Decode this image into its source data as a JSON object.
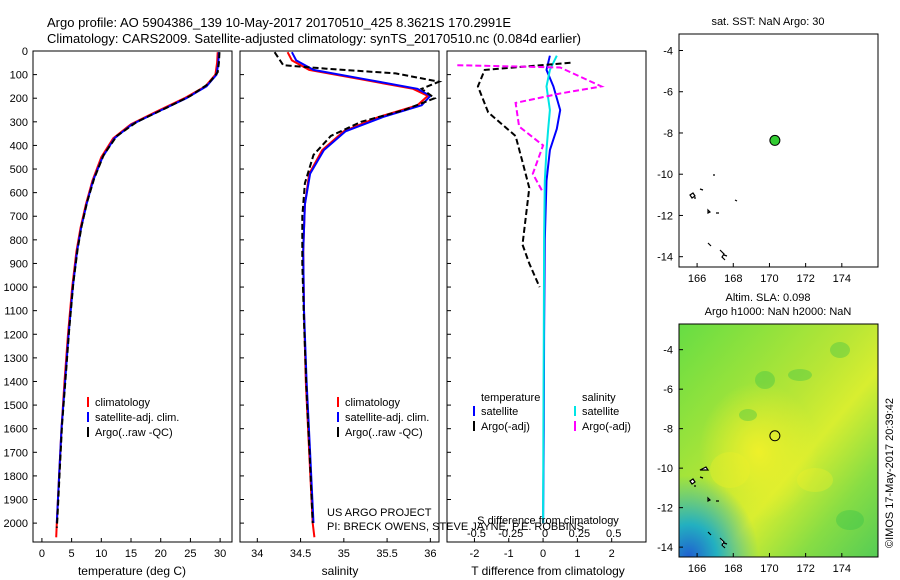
{
  "header": {
    "line1": "Argo profile: AO 5904386_139 10-May-2017 20170510_425 8.3621S 170.2991E",
    "line2": "Climatology: CARS2009. Satellite-adjusted climatology: synTS_20170510.nc (0.084d earlier)"
  },
  "colors": {
    "climatology": "#ff0000",
    "satellite": "#0000ff",
    "argo": "#000000",
    "sat_salinity": "#00e5e5",
    "argo_salinity_adj": "#ff00ff",
    "float_marker": "#33cc33"
  },
  "chart_data": [
    {
      "id": "temperature",
      "type": "line",
      "xlabel": "temperature (deg C)",
      "xlim": [
        -1.5,
        32
      ],
      "ylim": [
        2080,
        0
      ],
      "xticks": [
        0,
        5,
        10,
        15,
        20,
        25,
        30
      ],
      "yticks": [
        0,
        100,
        200,
        300,
        400,
        500,
        600,
        700,
        800,
        900,
        1000,
        1100,
        1200,
        1300,
        1400,
        1500,
        1600,
        1700,
        1800,
        1900,
        2000
      ],
      "legend": [
        "climatology",
        "satellite-adj. clim.",
        "Argo(..raw -QC)"
      ],
      "series": [
        {
          "name": "climatology",
          "color": "#ff0000",
          "dash": "",
          "points": [
            [
              29.6,
              5
            ],
            [
              29.5,
              50
            ],
            [
              29.2,
              100
            ],
            [
              27.5,
              150
            ],
            [
              24,
              200
            ],
            [
              19,
              260
            ],
            [
              15,
              310
            ],
            [
              12,
              370
            ],
            [
              10,
              450
            ],
            [
              8.5,
              550
            ],
            [
              7.4,
              650
            ],
            [
              6.5,
              750
            ],
            [
              5.8,
              850
            ],
            [
              5.1,
              1000
            ],
            [
              4.4,
              1200
            ],
            [
              3.8,
              1400
            ],
            [
              3.3,
              1600
            ],
            [
              2.9,
              1800
            ],
            [
              2.5,
              2000
            ],
            [
              2.4,
              2060
            ]
          ]
        },
        {
          "name": "satellite",
          "color": "#0000ff",
          "dash": "",
          "points": [
            [
              29.8,
              5
            ],
            [
              29.7,
              50
            ],
            [
              29.4,
              100
            ],
            [
              27.7,
              150
            ],
            [
              24.3,
              200
            ],
            [
              19.3,
              260
            ],
            [
              15.2,
              310
            ],
            [
              12.2,
              370
            ],
            [
              10.2,
              450
            ],
            [
              8.6,
              550
            ],
            [
              7.5,
              650
            ],
            [
              6.6,
              750
            ],
            [
              5.9,
              850
            ],
            [
              5.2,
              1000
            ],
            [
              4.5,
              1200
            ],
            [
              3.9,
              1400
            ],
            [
              3.3,
              1600
            ],
            [
              2.9,
              1800
            ],
            [
              2.5,
              2000
            ]
          ]
        },
        {
          "name": "Argo",
          "color": "#000000",
          "dash": "6,3",
          "points": [
            [
              29.9,
              5
            ],
            [
              29.8,
              50
            ],
            [
              29.6,
              90
            ],
            [
              28,
              140
            ],
            [
              25,
              190
            ],
            [
              21,
              240
            ],
            [
              16,
              300
            ],
            [
              12.6,
              360
            ],
            [
              10.4,
              440
            ],
            [
              8.8,
              540
            ],
            [
              7.6,
              640
            ],
            [
              6.7,
              740
            ],
            [
              6,
              840
            ],
            [
              5.3,
              980
            ],
            [
              4.6,
              1180
            ],
            [
              4,
              1380
            ],
            [
              3.4,
              1580
            ],
            [
              3,
              1780
            ],
            [
              2.6,
              1980
            ],
            [
              2.5,
              2020
            ]
          ]
        }
      ]
    },
    {
      "id": "salinity",
      "type": "line",
      "xlabel": "salinity",
      "xlim": [
        33.8,
        36.1
      ],
      "ylim": [
        2080,
        0
      ],
      "xticks": [
        34,
        34.5,
        35,
        35.5,
        36
      ],
      "yticks": [
        0,
        100,
        200,
        300,
        400,
        500,
        600,
        700,
        800,
        900,
        1000,
        1100,
        1200,
        1300,
        1400,
        1500,
        1600,
        1700,
        1800,
        1900,
        2000
      ],
      "legend": [
        "climatology",
        "satellite-adj. clim.",
        "Argo(..raw -QC)"
      ],
      "annotation": [
        "US ARGO PROJECT",
        "PI: BRECK OWENS, STEVE JAYNE, P.E. ROBBINS"
      ],
      "series": [
        {
          "name": "climatology",
          "color": "#ff0000",
          "dash": "",
          "points": [
            [
              34.35,
              5
            ],
            [
              34.4,
              40
            ],
            [
              34.6,
              80
            ],
            [
              35.2,
              120
            ],
            [
              35.8,
              160
            ],
            [
              35.97,
              190
            ],
            [
              35.85,
              230
            ],
            [
              35.4,
              280
            ],
            [
              35,
              340
            ],
            [
              34.75,
              420
            ],
            [
              34.6,
              520
            ],
            [
              34.55,
              650
            ],
            [
              34.53,
              850
            ],
            [
              34.54,
              1100
            ],
            [
              34.56,
              1400
            ],
            [
              34.6,
              1700
            ],
            [
              34.64,
              2000
            ],
            [
              34.66,
              2060
            ]
          ]
        },
        {
          "name": "satellite",
          "color": "#0000ff",
          "dash": "",
          "points": [
            [
              34.4,
              5
            ],
            [
              34.45,
              40
            ],
            [
              34.65,
              80
            ],
            [
              35.25,
              120
            ],
            [
              35.85,
              160
            ],
            [
              36.0,
              190
            ],
            [
              35.9,
              230
            ],
            [
              35.45,
              280
            ],
            [
              35.02,
              340
            ],
            [
              34.77,
              420
            ],
            [
              34.61,
              520
            ],
            [
              34.55,
              650
            ],
            [
              34.53,
              850
            ],
            [
              34.54,
              1100
            ],
            [
              34.57,
              1400
            ],
            [
              34.61,
              1700
            ],
            [
              34.65,
              2000
            ]
          ]
        },
        {
          "name": "Argo",
          "color": "#000000",
          "dash": "6,3",
          "points": [
            [
              34.2,
              5
            ],
            [
              34.3,
              60
            ],
            [
              34.8,
              75
            ],
            [
              35.6,
              95
            ],
            [
              36.1,
              130
            ],
            [
              35.9,
              160
            ],
            [
              36.05,
              200
            ],
            [
              35.7,
              250
            ],
            [
              35.2,
              300
            ],
            [
              34.85,
              360
            ],
            [
              34.65,
              440
            ],
            [
              34.55,
              560
            ],
            [
              34.52,
              700
            ],
            [
              34.52,
              900
            ],
            [
              34.54,
              1150
            ],
            [
              34.57,
              1450
            ],
            [
              34.61,
              1750
            ],
            [
              34.64,
              2000
            ]
          ]
        }
      ]
    },
    {
      "id": "difference",
      "type": "line",
      "xlabel": "T difference from climatology",
      "x2label": "S difference from climatology",
      "xlim": [
        -2.8,
        3.0
      ],
      "ylim": [
        2080,
        0
      ],
      "xticks": [
        -2,
        -1,
        0,
        1,
        2
      ],
      "x2ticks": [
        "-0.5",
        "-0.25",
        "0",
        "0.25",
        "0.5"
      ],
      "yticks": [
        0,
        100,
        200,
        300,
        400,
        500,
        600,
        700,
        800,
        900,
        1000,
        1100,
        1200,
        1300,
        1400,
        1500,
        1600,
        1700,
        1800,
        1900,
        2000
      ],
      "legend_titles": [
        "temperature",
        "salinity"
      ],
      "legend": [
        "satellite",
        "Argo(-adj)",
        "satellite",
        "Argo(-adj)"
      ],
      "series": [
        {
          "name": "T satellite",
          "color": "#0000ff",
          "dash": "",
          "points": [
            [
              0.2,
              20
            ],
            [
              0.1,
              80
            ],
            [
              0.3,
              150
            ],
            [
              0.5,
              250
            ],
            [
              0.4,
              330
            ],
            [
              0.2,
              420
            ],
            [
              0.1,
              550
            ],
            [
              0.05,
              800
            ],
            [
              0.03,
              1200
            ],
            [
              0.02,
              1600
            ],
            [
              0,
              2000
            ]
          ]
        },
        {
          "name": "S satellite",
          "color": "#00e5e5",
          "dash": "",
          "points": [
            [
              0.4,
              20
            ],
            [
              0.2,
              80
            ],
            [
              0.1,
              150
            ],
            [
              0.2,
              250
            ],
            [
              0.15,
              330
            ],
            [
              0.1,
              420
            ],
            [
              0.05,
              550
            ],
            [
              0.03,
              800
            ],
            [
              0.02,
              1200
            ],
            [
              0.01,
              1600
            ],
            [
              0,
              2000
            ]
          ]
        },
        {
          "name": "T Argo",
          "color": "#000000",
          "dash": "6,3",
          "points": [
            [
              0.8,
              50
            ],
            [
              -1.7,
              80
            ],
            [
              -1.9,
              150
            ],
            [
              -1.6,
              260
            ],
            [
              -0.8,
              360
            ],
            [
              -0.6,
              470
            ],
            [
              -0.4,
              580
            ],
            [
              -0.5,
              700
            ],
            [
              -0.6,
              820
            ],
            [
              -0.4,
              900
            ],
            [
              -0.1,
              1000
            ]
          ]
        },
        {
          "name": "S Argo",
          "color": "#ff00ff",
          "dash": "6,3",
          "points": [
            [
              -2.5,
              60
            ],
            [
              0.5,
              70
            ],
            [
              1.7,
              150
            ],
            [
              0.5,
              180
            ],
            [
              -0.8,
              220
            ],
            [
              -0.7,
              320
            ],
            [
              0,
              400
            ],
            [
              -0.3,
              520
            ],
            [
              0,
              600
            ]
          ]
        }
      ]
    },
    {
      "id": "sst_map",
      "type": "scatter",
      "title": "sat. SST: NaN Argo: 30",
      "xlim": [
        165,
        176
      ],
      "ylim": [
        -14.5,
        -3.2
      ],
      "xticks": [
        166,
        168,
        170,
        172,
        174
      ],
      "yticks": [
        -4,
        -6,
        -8,
        -10,
        -12,
        -14
      ],
      "float_position": {
        "lon": 170.3,
        "lat": -8.36
      }
    },
    {
      "id": "sla_map",
      "type": "heatmap",
      "title_line1": "Altim. SLA: 0.098",
      "title_line2": "Argo h1000: NaN h2000: NaN",
      "xlim": [
        165,
        176
      ],
      "ylim": [
        -14.5,
        -2.7
      ],
      "xticks": [
        166,
        168,
        170,
        172,
        174
      ],
      "yticks": [
        -4,
        -6,
        -8,
        -10,
        -12,
        -14
      ],
      "float_position": {
        "lon": 170.3,
        "lat": -8.36
      }
    }
  ],
  "footer": {
    "imos_stamp": "©IMOS 17-May-2017 20:39:42"
  }
}
